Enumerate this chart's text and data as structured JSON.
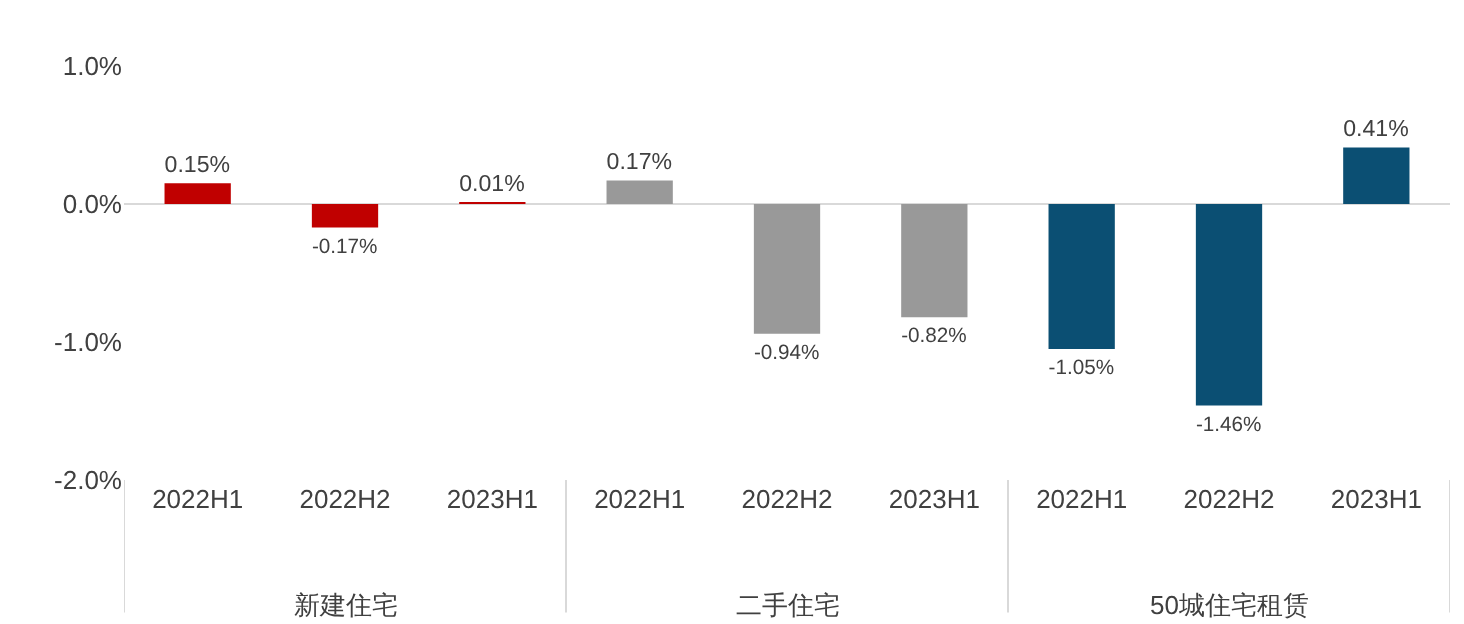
{
  "chart_data": {
    "type": "bar",
    "categories": [
      "2022H1",
      "2022H2",
      "2023H1",
      "2022H1",
      "2022H2",
      "2023H1",
      "2022H1",
      "2022H2",
      "2023H1"
    ],
    "values": [
      0.15,
      -0.17,
      0.01,
      0.17,
      -0.94,
      -0.82,
      -1.05,
      -1.46,
      0.41
    ],
    "colors": [
      "#c00000",
      "#c00000",
      "#c00000",
      "#999999",
      "#999999",
      "#999999",
      "#0b4f73",
      "#0b4f73",
      "#0b4f73"
    ],
    "value_labels": [
      "0.15%",
      "-0.17%",
      "0.01%",
      "0.17%",
      "-0.94%",
      "-0.82%",
      "-1.05%",
      "-1.46%",
      "0.41%"
    ],
    "ylim": [
      -2,
      1
    ],
    "yticks": [
      {
        "value": -2,
        "label": "-2.0%"
      },
      {
        "value": -1,
        "label": "-1.0%"
      },
      {
        "value": 0,
        "label": "0.0%"
      },
      {
        "value": 1,
        "label": "1.0%"
      }
    ],
    "annotations": [
      "新建住宅",
      "二手住宅",
      "50城住宅租赁"
    ]
  }
}
